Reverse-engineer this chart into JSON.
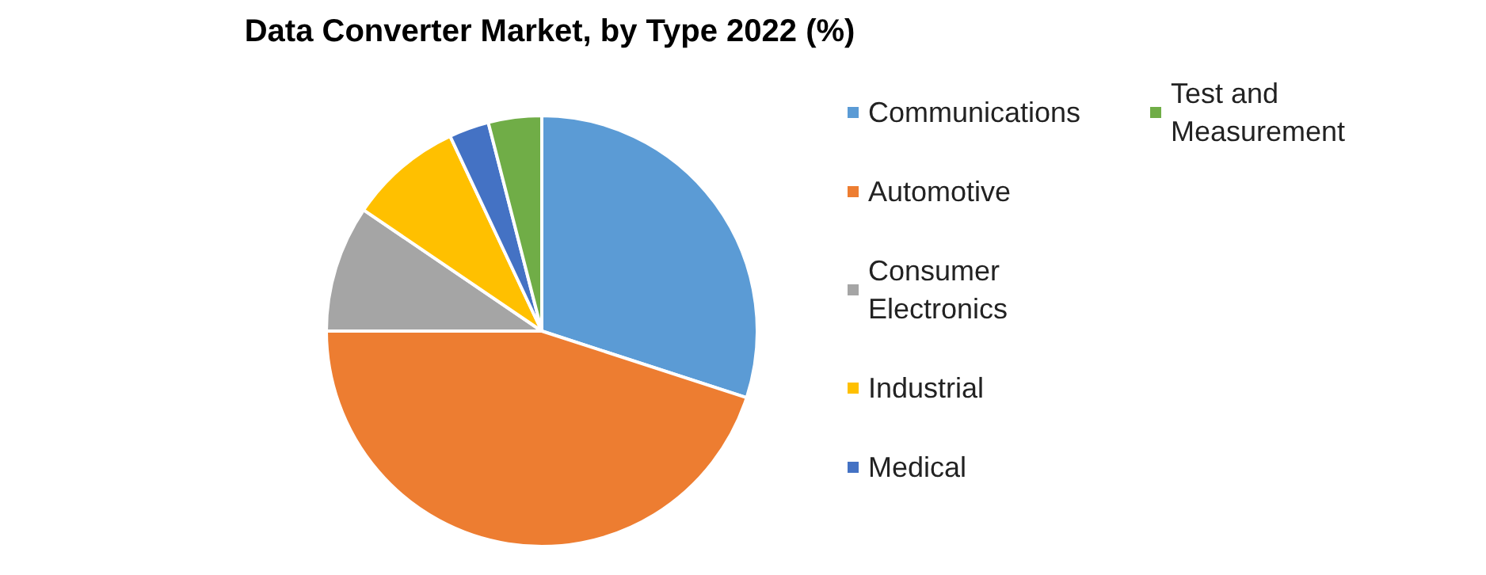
{
  "chart_data": {
    "type": "pie",
    "title": "Data Converter Market, by Type 2022 (%)",
    "categories": [
      "Communications",
      "Automotive",
      "Consumer Electronics",
      "Industrial",
      "Medical",
      "Test and Measurement"
    ],
    "values": [
      30,
      45,
      9.5,
      8.5,
      3,
      4
    ],
    "colors": [
      "#5b9bd5",
      "#ed7d31",
      "#a5a5a5",
      "#ffc000",
      "#4472c4",
      "#70ad47"
    ],
    "legend": "right"
  }
}
